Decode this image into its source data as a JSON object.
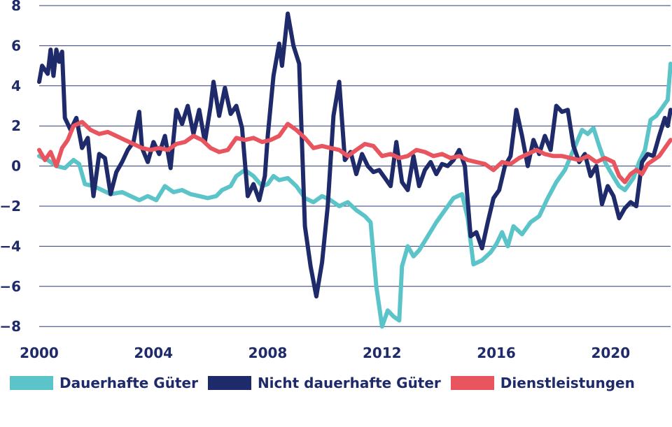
{
  "chart_data": {
    "type": "line",
    "title": "",
    "xlabel": "",
    "ylabel": "",
    "xlim": [
      2000,
      2022.1
    ],
    "ylim": [
      -8.5,
      8
    ],
    "y_ticks": [
      "8",
      "6",
      "4",
      "2",
      "0",
      "−2",
      "−4",
      "−6",
      "−8"
    ],
    "x_ticks": [
      "2000",
      "2004",
      "2008",
      "2012",
      "2016",
      "2020"
    ],
    "grid": "horizontal",
    "legend_position": "bottom",
    "series": [
      {
        "name": "Dauerhafte Güter",
        "color": "#5bc4c9",
        "points": [
          [
            2000.0,
            0.5
          ],
          [
            2000.3,
            0.3
          ],
          [
            2000.6,
            0.0
          ],
          [
            2000.9,
            -0.1
          ],
          [
            2001.2,
            0.3
          ],
          [
            2001.4,
            0.1
          ],
          [
            2001.6,
            -0.9
          ],
          [
            2001.9,
            -1.0
          ],
          [
            2002.2,
            -1.2
          ],
          [
            2002.5,
            -1.4
          ],
          [
            2002.9,
            -1.3
          ],
          [
            2003.2,
            -1.5
          ],
          [
            2003.5,
            -1.7
          ],
          [
            2003.8,
            -1.5
          ],
          [
            2004.1,
            -1.7
          ],
          [
            2004.4,
            -1.0
          ],
          [
            2004.7,
            -1.3
          ],
          [
            2005.0,
            -1.2
          ],
          [
            2005.3,
            -1.4
          ],
          [
            2005.6,
            -1.5
          ],
          [
            2005.9,
            -1.6
          ],
          [
            2006.2,
            -1.5
          ],
          [
            2006.4,
            -1.2
          ],
          [
            2006.7,
            -1.0
          ],
          [
            2006.9,
            -0.5
          ],
          [
            2007.2,
            -0.2
          ],
          [
            2007.5,
            -0.5
          ],
          [
            2007.8,
            -1.0
          ],
          [
            2008.0,
            -0.9
          ],
          [
            2008.2,
            -0.5
          ],
          [
            2008.4,
            -0.7
          ],
          [
            2008.7,
            -0.6
          ],
          [
            2009.0,
            -1.0
          ],
          [
            2009.3,
            -1.6
          ],
          [
            2009.6,
            -1.8
          ],
          [
            2009.9,
            -1.5
          ],
          [
            2010.2,
            -1.7
          ],
          [
            2010.5,
            -2.0
          ],
          [
            2010.8,
            -1.8
          ],
          [
            2011.1,
            -2.2
          ],
          [
            2011.4,
            -2.5
          ],
          [
            2011.6,
            -2.8
          ],
          [
            2011.8,
            -6.0
          ],
          [
            2012.0,
            -8.0
          ],
          [
            2012.2,
            -7.2
          ],
          [
            2012.4,
            -7.5
          ],
          [
            2012.6,
            -7.7
          ],
          [
            2012.7,
            -5.0
          ],
          [
            2012.9,
            -4.0
          ],
          [
            2013.1,
            -4.5
          ],
          [
            2013.3,
            -4.2
          ],
          [
            2013.6,
            -3.5
          ],
          [
            2013.9,
            -2.8
          ],
          [
            2014.2,
            -2.2
          ],
          [
            2014.5,
            -1.6
          ],
          [
            2014.8,
            -1.4
          ],
          [
            2015.0,
            -2.6
          ],
          [
            2015.2,
            -4.9
          ],
          [
            2015.5,
            -4.7
          ],
          [
            2015.8,
            -4.3
          ],
          [
            2016.0,
            -3.9
          ],
          [
            2016.2,
            -3.3
          ],
          [
            2016.4,
            -4.0
          ],
          [
            2016.6,
            -3.0
          ],
          [
            2016.9,
            -3.4
          ],
          [
            2017.2,
            -2.8
          ],
          [
            2017.5,
            -2.5
          ],
          [
            2017.8,
            -1.6
          ],
          [
            2018.1,
            -0.8
          ],
          [
            2018.4,
            -0.2
          ],
          [
            2018.7,
            0.8
          ],
          [
            2019.0,
            1.8
          ],
          [
            2019.2,
            1.6
          ],
          [
            2019.4,
            1.9
          ],
          [
            2019.6,
            1.0
          ],
          [
            2019.8,
            0.2
          ],
          [
            2020.0,
            -0.3
          ],
          [
            2020.3,
            -1.0
          ],
          [
            2020.5,
            -1.2
          ],
          [
            2020.8,
            -0.6
          ],
          [
            2021.0,
            0.2
          ],
          [
            2021.2,
            0.8
          ],
          [
            2021.4,
            2.3
          ],
          [
            2021.6,
            2.5
          ],
          [
            2021.8,
            2.9
          ],
          [
            2022.0,
            3.3
          ],
          [
            2022.1,
            5.1
          ]
        ]
      },
      {
        "name": "Nicht dauerhafte Güter",
        "color": "#1f2a6b",
        "points": [
          [
            2000.0,
            4.2
          ],
          [
            2000.1,
            5.0
          ],
          [
            2000.3,
            4.6
          ],
          [
            2000.4,
            5.8
          ],
          [
            2000.5,
            4.5
          ],
          [
            2000.6,
            5.8
          ],
          [
            2000.7,
            5.2
          ],
          [
            2000.8,
            5.7
          ],
          [
            2000.9,
            2.4
          ],
          [
            2001.1,
            1.8
          ],
          [
            2001.3,
            2.4
          ],
          [
            2001.5,
            0.9
          ],
          [
            2001.7,
            1.4
          ],
          [
            2001.9,
            -1.5
          ],
          [
            2002.1,
            0.6
          ],
          [
            2002.3,
            0.4
          ],
          [
            2002.5,
            -1.4
          ],
          [
            2002.7,
            -0.3
          ],
          [
            2002.9,
            0.2
          ],
          [
            2003.1,
            0.8
          ],
          [
            2003.3,
            1.2
          ],
          [
            2003.5,
            2.7
          ],
          [
            2003.6,
            0.9
          ],
          [
            2003.8,
            0.2
          ],
          [
            2004.0,
            1.2
          ],
          [
            2004.2,
            0.6
          ],
          [
            2004.4,
            1.5
          ],
          [
            2004.6,
            -0.1
          ],
          [
            2004.8,
            2.8
          ],
          [
            2005.0,
            2.1
          ],
          [
            2005.2,
            3.0
          ],
          [
            2005.4,
            1.6
          ],
          [
            2005.6,
            2.8
          ],
          [
            2005.8,
            1.2
          ],
          [
            2006.0,
            3.0
          ],
          [
            2006.1,
            4.2
          ],
          [
            2006.3,
            2.5
          ],
          [
            2006.5,
            3.9
          ],
          [
            2006.7,
            2.6
          ],
          [
            2006.9,
            3.0
          ],
          [
            2007.1,
            1.9
          ],
          [
            2007.3,
            -1.5
          ],
          [
            2007.5,
            -0.9
          ],
          [
            2007.7,
            -1.7
          ],
          [
            2007.9,
            -0.5
          ],
          [
            2008.0,
            1.5
          ],
          [
            2008.2,
            4.5
          ],
          [
            2008.4,
            6.1
          ],
          [
            2008.5,
            5.0
          ],
          [
            2008.7,
            7.6
          ],
          [
            2008.9,
            6.0
          ],
          [
            2009.1,
            5.1
          ],
          [
            2009.3,
            -3.0
          ],
          [
            2009.5,
            -5.0
          ],
          [
            2009.7,
            -6.5
          ],
          [
            2009.9,
            -4.8
          ],
          [
            2010.1,
            -2.0
          ],
          [
            2010.3,
            2.5
          ],
          [
            2010.5,
            4.2
          ],
          [
            2010.7,
            0.3
          ],
          [
            2010.9,
            0.7
          ],
          [
            2011.1,
            -0.4
          ],
          [
            2011.3,
            0.6
          ],
          [
            2011.5,
            0.0
          ],
          [
            2011.7,
            -0.3
          ],
          [
            2011.9,
            -0.2
          ],
          [
            2012.1,
            -0.6
          ],
          [
            2012.3,
            -1.0
          ],
          [
            2012.5,
            1.2
          ],
          [
            2012.7,
            -0.8
          ],
          [
            2012.9,
            -1.2
          ],
          [
            2013.1,
            0.5
          ],
          [
            2013.3,
            -1.0
          ],
          [
            2013.5,
            -0.2
          ],
          [
            2013.7,
            0.2
          ],
          [
            2013.9,
            -0.4
          ],
          [
            2014.1,
            0.1
          ],
          [
            2014.3,
            0.0
          ],
          [
            2014.5,
            0.3
          ],
          [
            2014.7,
            0.8
          ],
          [
            2014.9,
            0.0
          ],
          [
            2015.1,
            -3.5
          ],
          [
            2015.3,
            -3.3
          ],
          [
            2015.5,
            -4.1
          ],
          [
            2015.7,
            -2.8
          ],
          [
            2015.9,
            -1.6
          ],
          [
            2016.1,
            -1.2
          ],
          [
            2016.3,
            0.0
          ],
          [
            2016.5,
            0.5
          ],
          [
            2016.7,
            2.8
          ],
          [
            2016.9,
            1.5
          ],
          [
            2017.1,
            0.0
          ],
          [
            2017.3,
            1.3
          ],
          [
            2017.5,
            0.6
          ],
          [
            2017.7,
            1.5
          ],
          [
            2017.9,
            0.8
          ],
          [
            2018.1,
            3.0
          ],
          [
            2018.3,
            2.7
          ],
          [
            2018.5,
            2.8
          ],
          [
            2018.7,
            1.0
          ],
          [
            2018.9,
            0.2
          ],
          [
            2019.1,
            0.6
          ],
          [
            2019.3,
            -0.5
          ],
          [
            2019.5,
            0.0
          ],
          [
            2019.7,
            -1.9
          ],
          [
            2019.9,
            -1.0
          ],
          [
            2020.1,
            -1.5
          ],
          [
            2020.3,
            -2.6
          ],
          [
            2020.5,
            -2.1
          ],
          [
            2020.7,
            -1.8
          ],
          [
            2020.9,
            -2.0
          ],
          [
            2021.1,
            0.2
          ],
          [
            2021.3,
            0.6
          ],
          [
            2021.5,
            0.5
          ],
          [
            2021.7,
            1.5
          ],
          [
            2021.9,
            2.4
          ],
          [
            2022.0,
            2.0
          ],
          [
            2022.1,
            2.8
          ]
        ]
      },
      {
        "name": "Dienstleistungen",
        "color": "#e9555f",
        "points": [
          [
            2000.0,
            0.8
          ],
          [
            2000.2,
            0.3
          ],
          [
            2000.4,
            0.7
          ],
          [
            2000.6,
            0.0
          ],
          [
            2000.8,
            0.9
          ],
          [
            2001.0,
            1.3
          ],
          [
            2001.2,
            2.0
          ],
          [
            2001.5,
            2.2
          ],
          [
            2001.8,
            1.8
          ],
          [
            2002.1,
            1.6
          ],
          [
            2002.4,
            1.7
          ],
          [
            2002.7,
            1.5
          ],
          [
            2003.0,
            1.3
          ],
          [
            2003.3,
            1.1
          ],
          [
            2003.6,
            0.9
          ],
          [
            2003.9,
            0.8
          ],
          [
            2004.2,
            0.9
          ],
          [
            2004.5,
            0.8
          ],
          [
            2004.8,
            1.1
          ],
          [
            2005.1,
            1.2
          ],
          [
            2005.4,
            1.5
          ],
          [
            2005.7,
            1.3
          ],
          [
            2006.0,
            0.9
          ],
          [
            2006.3,
            0.7
          ],
          [
            2006.6,
            0.8
          ],
          [
            2006.9,
            1.4
          ],
          [
            2007.2,
            1.3
          ],
          [
            2007.5,
            1.4
          ],
          [
            2007.8,
            1.2
          ],
          [
            2008.1,
            1.3
          ],
          [
            2008.4,
            1.5
          ],
          [
            2008.7,
            2.1
          ],
          [
            2009.0,
            1.8
          ],
          [
            2009.3,
            1.4
          ],
          [
            2009.6,
            0.9
          ],
          [
            2009.9,
            1.0
          ],
          [
            2010.2,
            0.9
          ],
          [
            2010.5,
            0.8
          ],
          [
            2010.8,
            0.5
          ],
          [
            2011.1,
            0.8
          ],
          [
            2011.4,
            1.1
          ],
          [
            2011.7,
            1.0
          ],
          [
            2012.0,
            0.5
          ],
          [
            2012.3,
            0.6
          ],
          [
            2012.6,
            0.4
          ],
          [
            2012.9,
            0.5
          ],
          [
            2013.2,
            0.8
          ],
          [
            2013.5,
            0.7
          ],
          [
            2013.8,
            0.5
          ],
          [
            2014.1,
            0.6
          ],
          [
            2014.4,
            0.4
          ],
          [
            2014.7,
            0.5
          ],
          [
            2015.0,
            0.3
          ],
          [
            2015.3,
            0.2
          ],
          [
            2015.6,
            0.1
          ],
          [
            2015.9,
            -0.2
          ],
          [
            2016.2,
            0.2
          ],
          [
            2016.5,
            0.1
          ],
          [
            2016.8,
            0.4
          ],
          [
            2017.1,
            0.6
          ],
          [
            2017.4,
            0.8
          ],
          [
            2017.7,
            0.6
          ],
          [
            2018.0,
            0.5
          ],
          [
            2018.3,
            0.5
          ],
          [
            2018.6,
            0.4
          ],
          [
            2018.9,
            0.3
          ],
          [
            2019.2,
            0.5
          ],
          [
            2019.5,
            0.2
          ],
          [
            2019.8,
            0.4
          ],
          [
            2020.1,
            0.2
          ],
          [
            2020.3,
            -0.5
          ],
          [
            2020.5,
            -0.8
          ],
          [
            2020.7,
            -0.4
          ],
          [
            2020.9,
            -0.2
          ],
          [
            2021.1,
            -0.4
          ],
          [
            2021.3,
            0.1
          ],
          [
            2021.5,
            0.3
          ],
          [
            2021.7,
            0.5
          ],
          [
            2021.9,
            0.9
          ],
          [
            2022.1,
            1.3
          ]
        ]
      }
    ]
  }
}
